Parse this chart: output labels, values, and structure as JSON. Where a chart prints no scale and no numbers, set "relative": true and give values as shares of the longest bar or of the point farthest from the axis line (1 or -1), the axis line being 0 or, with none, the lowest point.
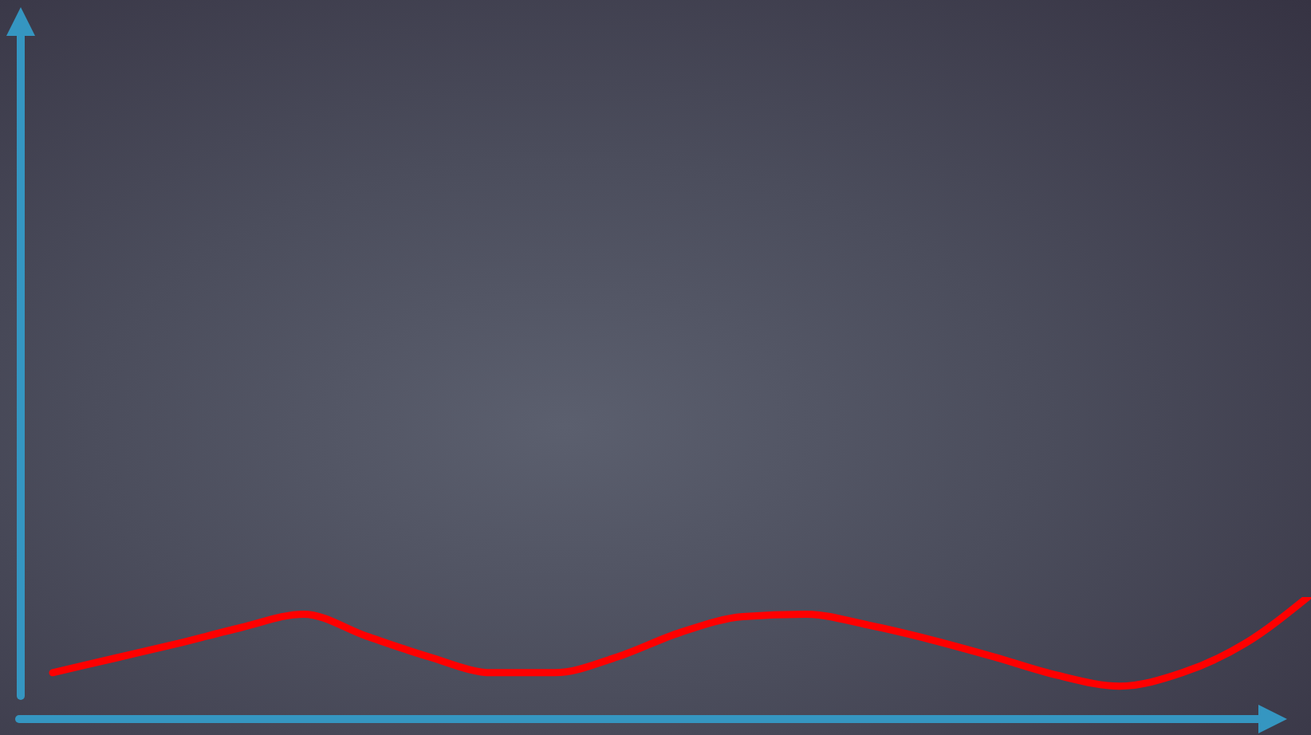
{
  "chart_data": {
    "type": "line",
    "relative": true,
    "categories": [
      null,
      null,
      null,
      null,
      null,
      null,
      null,
      null,
      null,
      null,
      null,
      null,
      null,
      null,
      null,
      null,
      null,
      null,
      null,
      null,
      null
    ],
    "series": [
      {
        "color": "#ff0000",
        "values": [
          0.38,
          0.5,
          0.62,
          0.75,
          0.86,
          0.68,
          0.51,
          0.38,
          0.38,
          0.51,
          0.71,
          0.84,
          0.86,
          0.77,
          0.65,
          0.51,
          0.36,
          0.27,
          0.38,
          0.62,
          1
        ]
      }
    ],
    "legend": false,
    "grid": false,
    "marker": "none"
  }
}
